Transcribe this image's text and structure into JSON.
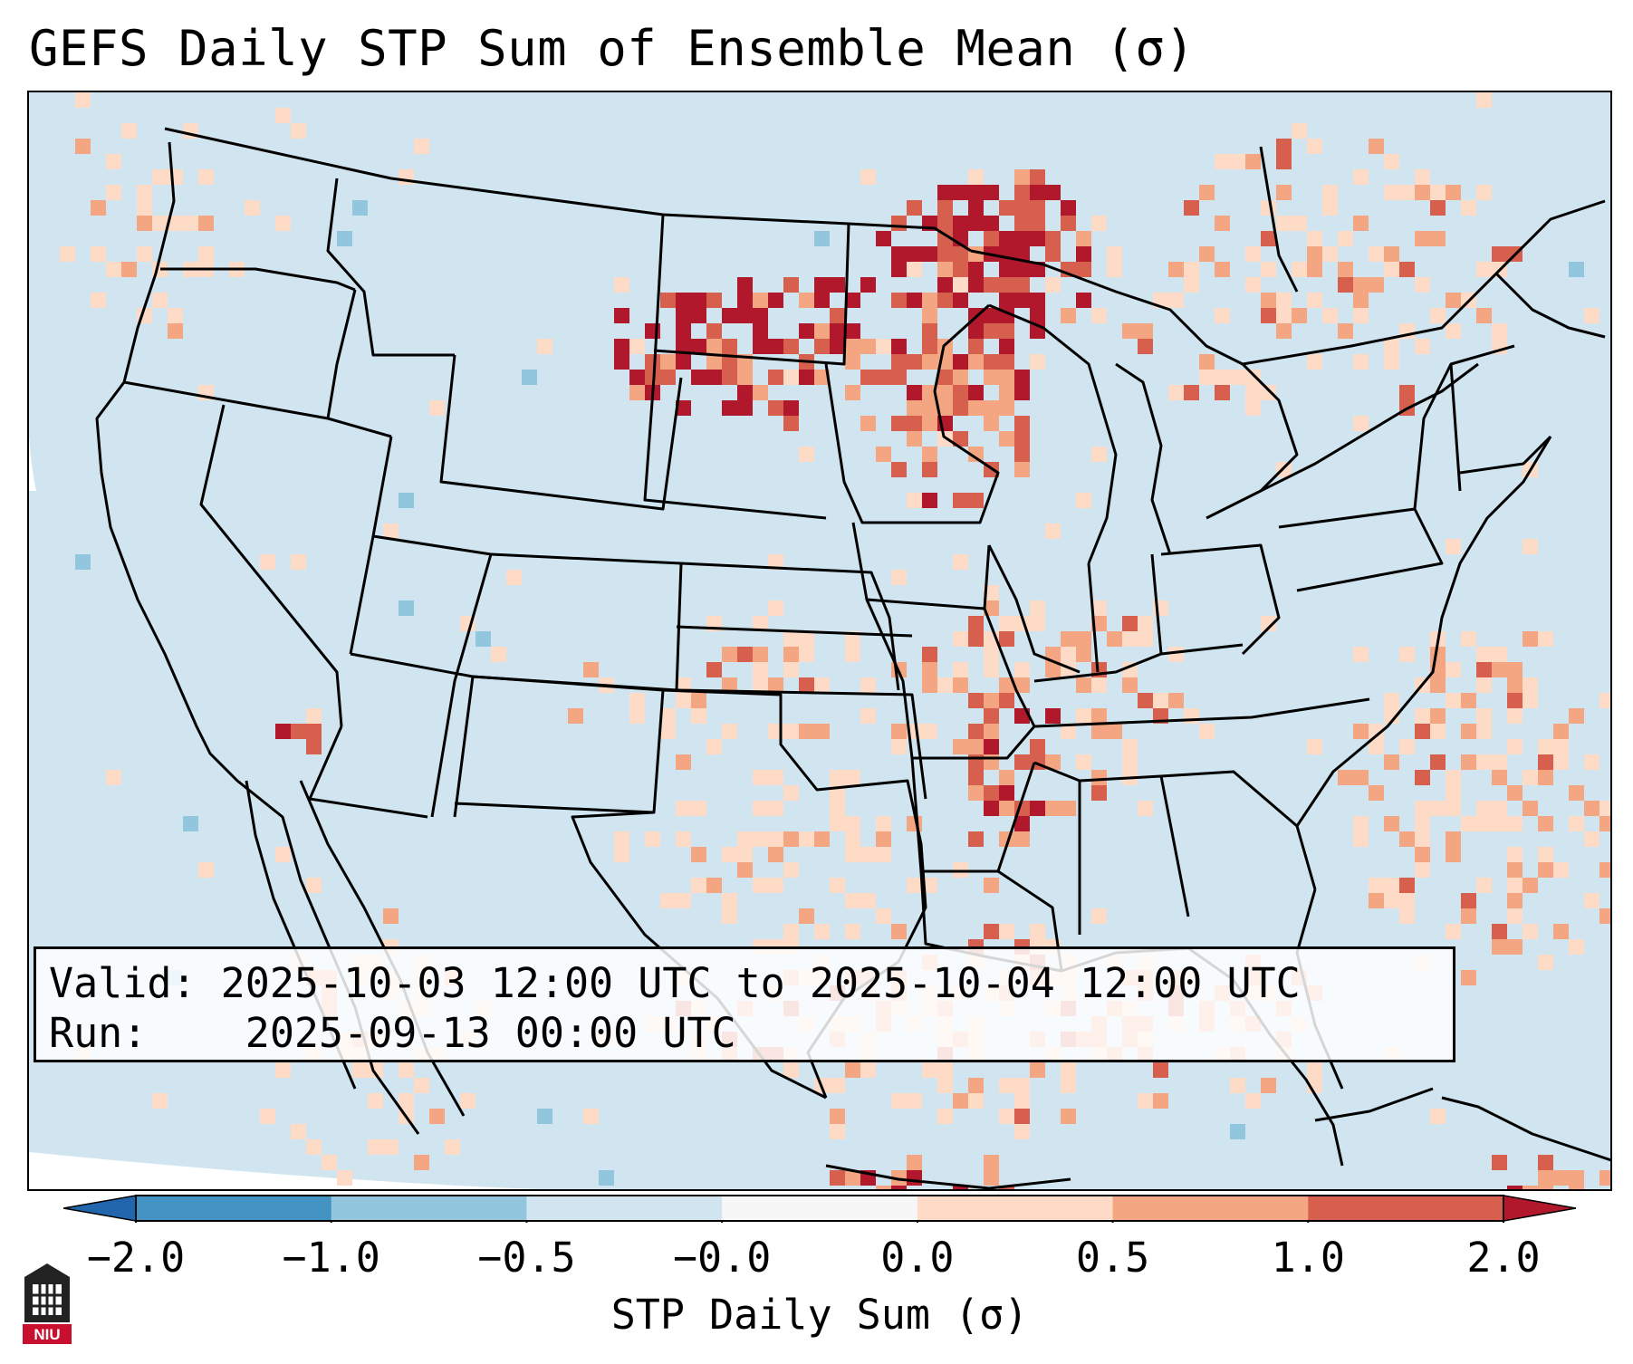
{
  "title": "GEFS Daily STP Sum of Ensemble Mean (σ)",
  "info": {
    "valid_label": "Valid:",
    "valid_value": "2025-10-03 12:00 UTC to 2025-10-04 12:00 UTC",
    "run_label": "Run:",
    "run_value": "2025-09-13 00:00 UTC"
  },
  "colorbar": {
    "label": "STP Daily Sum (σ)",
    "ticks": [
      "−2.0",
      "−1.0",
      "−0.5",
      "−0.0",
      "0.0",
      "0.5",
      "1.0",
      "2.0"
    ],
    "bins": [
      {
        "range": "-2.0 to -1.0",
        "color": "#4393c3"
      },
      {
        "range": "-1.0 to -0.5",
        "color": "#92c5de"
      },
      {
        "range": "-0.5 to -0.0",
        "color": "#d1e5f0"
      },
      {
        "range": "-0.0 to 0.0",
        "color": "#f7f7f7"
      },
      {
        "range": "0.0 to 0.5",
        "color": "#fddbc7"
      },
      {
        "range": "0.5 to 1.0",
        "color": "#f4a582"
      },
      {
        "range": "1.0 to 2.0",
        "color": "#d6604d"
      }
    ],
    "extend_low_color": "#2166ac",
    "extend_high_color": "#b2182b"
  },
  "map": {
    "background_color": "#d1e5f0",
    "outside_color": "#ffffff",
    "border_color": "#000000",
    "highlight_regions": [
      {
        "name": "Upper Midwest / Minnesota",
        "level": "high"
      },
      {
        "name": "North Dakota / South Dakota",
        "level": "high"
      },
      {
        "name": "Mississippi Valley (Arkansas / Missouri)",
        "level": "moderate"
      },
      {
        "name": "Gulf of Mexico",
        "level": "low"
      },
      {
        "name": "Western Atlantic",
        "level": "moderate"
      },
      {
        "name": "Southern California",
        "level": "high"
      }
    ]
  },
  "logo": {
    "text": "NIU"
  }
}
